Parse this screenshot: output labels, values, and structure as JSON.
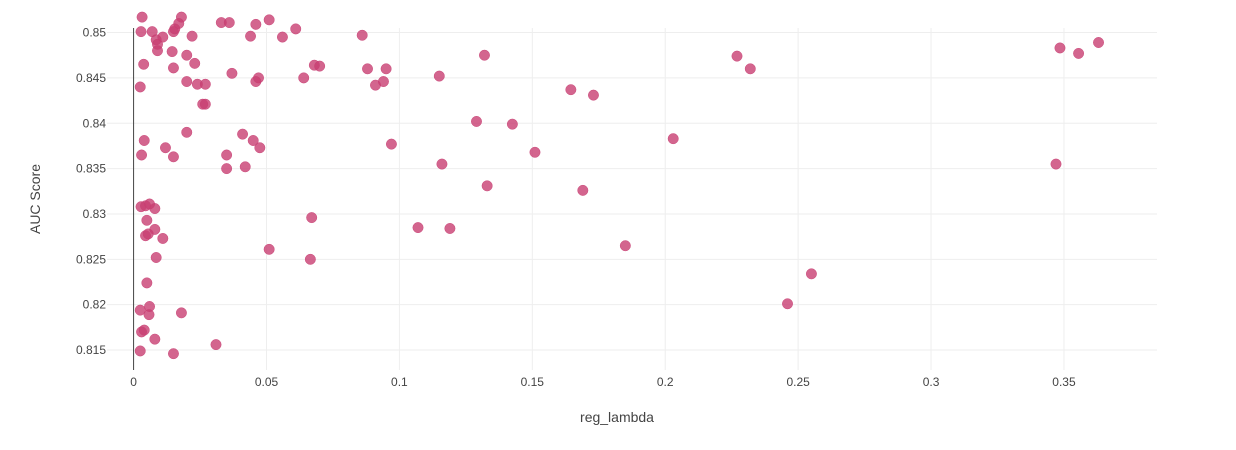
{
  "chart_data": {
    "type": "scatter",
    "title": "",
    "xlabel": "reg_lambda",
    "ylabel": "AUC Score",
    "xlim": [
      -0.01,
      0.385
    ],
    "ylim": [
      0.8128,
      0.8505
    ],
    "xticks": [
      0,
      0.05,
      0.1,
      0.15,
      0.2,
      0.25,
      0.3,
      0.35
    ],
    "xtick_labels": [
      "0",
      "0.05",
      "0.1",
      "0.15",
      "0.2",
      "0.25",
      "0.3",
      "0.35"
    ],
    "yticks": [
      0.815,
      0.82,
      0.825,
      0.83,
      0.835,
      0.84,
      0.845,
      0.85
    ],
    "ytick_labels": [
      "0.815",
      "0.82",
      "0.825",
      "0.83",
      "0.835",
      "0.84",
      "0.845",
      "0.85"
    ],
    "grid": true,
    "legend": "none",
    "marker_color": "#c83e72",
    "series": [
      {
        "points": [
          [
            0.0028,
            0.8501
          ],
          [
            0.0032,
            0.8517
          ],
          [
            0.0025,
            0.844
          ],
          [
            0.0038,
            0.8465
          ],
          [
            0.004,
            0.8381
          ],
          [
            0.003,
            0.8365
          ],
          [
            0.0028,
            0.8308
          ],
          [
            0.0045,
            0.8309
          ],
          [
            0.005,
            0.8293
          ],
          [
            0.0045,
            0.8276
          ],
          [
            0.0055,
            0.8278
          ],
          [
            0.006,
            0.8311
          ],
          [
            0.007,
            0.8501
          ],
          [
            0.008,
            0.8306
          ],
          [
            0.0085,
            0.8492
          ],
          [
            0.009,
            0.8487
          ],
          [
            0.009,
            0.848
          ],
          [
            0.008,
            0.8283
          ],
          [
            0.0085,
            0.8252
          ],
          [
            0.005,
            0.8224
          ],
          [
            0.0025,
            0.8194
          ],
          [
            0.006,
            0.8198
          ],
          [
            0.0058,
            0.8189
          ],
          [
            0.003,
            0.817
          ],
          [
            0.004,
            0.8172
          ],
          [
            0.008,
            0.8162
          ],
          [
            0.0025,
            0.8149
          ],
          [
            0.011,
            0.8495
          ],
          [
            0.012,
            0.8373
          ],
          [
            0.011,
            0.8273
          ],
          [
            0.0145,
            0.8479
          ],
          [
            0.015,
            0.8501
          ],
          [
            0.0155,
            0.8504
          ],
          [
            0.015,
            0.8461
          ],
          [
            0.015,
            0.8363
          ],
          [
            0.017,
            0.851
          ],
          [
            0.018,
            0.8517
          ],
          [
            0.018,
            0.8191
          ],
          [
            0.015,
            0.8146
          ],
          [
            0.02,
            0.8475
          ],
          [
            0.022,
            0.8496
          ],
          [
            0.02,
            0.8446
          ],
          [
            0.023,
            0.8466
          ],
          [
            0.024,
            0.8443
          ],
          [
            0.026,
            0.8421
          ],
          [
            0.027,
            0.8443
          ],
          [
            0.027,
            0.8421
          ],
          [
            0.02,
            0.839
          ],
          [
            0.031,
            0.8156
          ],
          [
            0.033,
            0.8511
          ],
          [
            0.036,
            0.8511
          ],
          [
            0.037,
            0.8455
          ],
          [
            0.035,
            0.8365
          ],
          [
            0.035,
            0.835
          ],
          [
            0.041,
            0.8388
          ],
          [
            0.042,
            0.8352
          ],
          [
            0.044,
            0.8496
          ],
          [
            0.046,
            0.8509
          ],
          [
            0.045,
            0.8381
          ],
          [
            0.046,
            0.8446
          ],
          [
            0.047,
            0.845
          ],
          [
            0.0475,
            0.8373
          ],
          [
            0.051,
            0.8514
          ],
          [
            0.051,
            0.8261
          ],
          [
            0.056,
            0.8495
          ],
          [
            0.061,
            0.8504
          ],
          [
            0.064,
            0.845
          ],
          [
            0.067,
            0.8296
          ],
          [
            0.0665,
            0.825
          ],
          [
            0.068,
            0.8464
          ],
          [
            0.07,
            0.8463
          ],
          [
            0.086,
            0.8497
          ],
          [
            0.088,
            0.846
          ],
          [
            0.091,
            0.8442
          ],
          [
            0.094,
            0.8446
          ],
          [
            0.095,
            0.846
          ],
          [
            0.097,
            0.8377
          ],
          [
            0.107,
            0.8285
          ],
          [
            0.115,
            0.8452
          ],
          [
            0.116,
            0.8355
          ],
          [
            0.119,
            0.8284
          ],
          [
            0.129,
            0.8402
          ],
          [
            0.132,
            0.8475
          ],
          [
            0.133,
            0.8331
          ],
          [
            0.1425,
            0.8399
          ],
          [
            0.151,
            0.8368
          ],
          [
            0.1645,
            0.8437
          ],
          [
            0.169,
            0.8326
          ],
          [
            0.173,
            0.8431
          ],
          [
            0.185,
            0.8265
          ],
          [
            0.203,
            0.8383
          ],
          [
            0.227,
            0.8474
          ],
          [
            0.232,
            0.846
          ],
          [
            0.246,
            0.8201
          ],
          [
            0.255,
            0.8234
          ],
          [
            0.347,
            0.8355
          ],
          [
            0.3485,
            0.8483
          ],
          [
            0.3555,
            0.8477
          ],
          [
            0.363,
            0.8489
          ]
        ]
      }
    ]
  }
}
